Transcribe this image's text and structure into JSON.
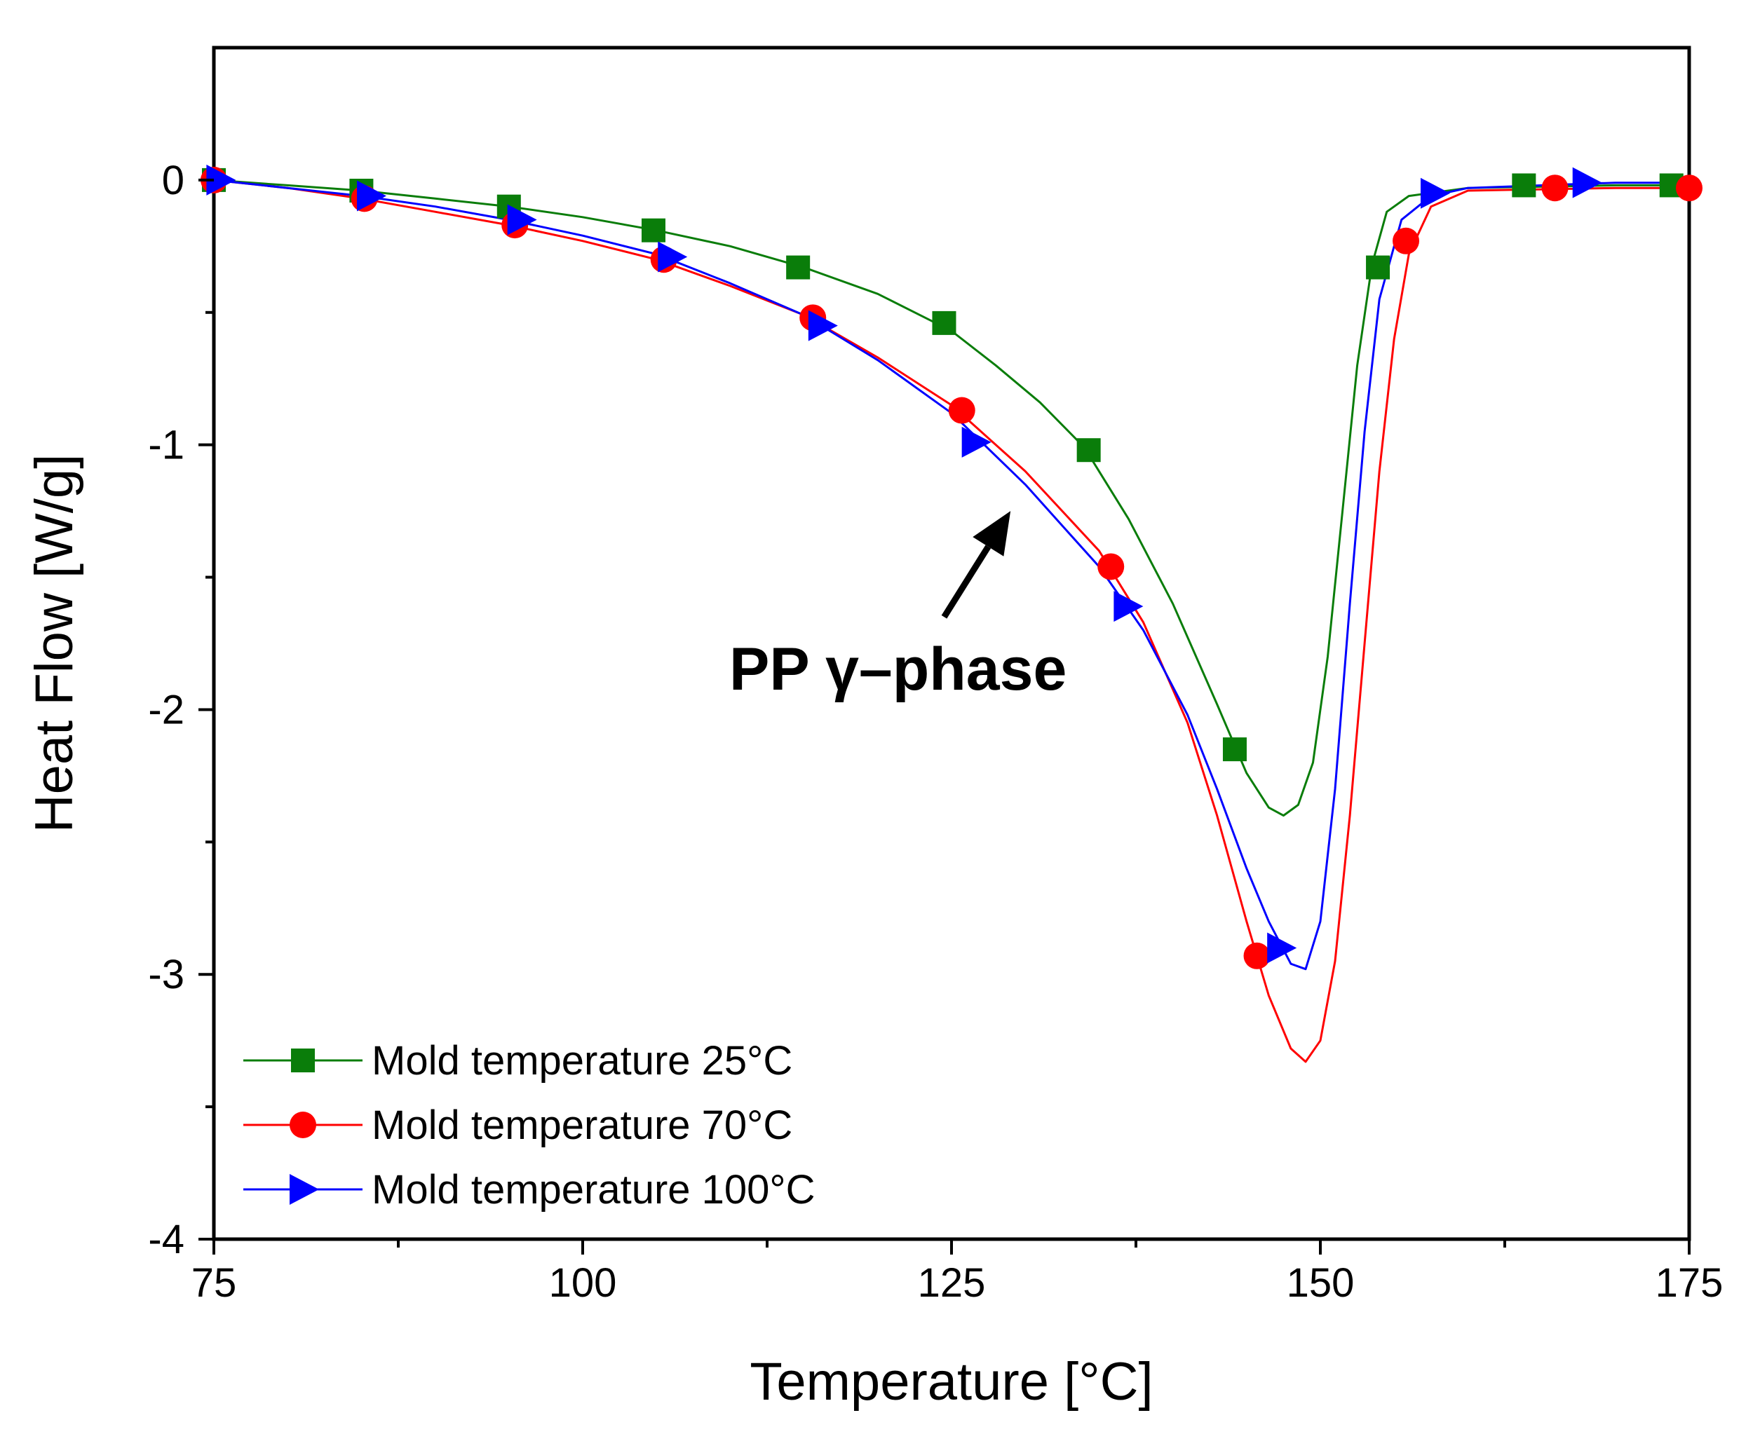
{
  "chart_data": {
    "type": "line",
    "title": "",
    "xlabel": "Temperature [°C]",
    "ylabel": "Heat Flow [W/g]",
    "xlim": [
      75,
      175
    ],
    "ylim": [
      -4,
      0.5
    ],
    "x_ticks": [
      75,
      100,
      125,
      150,
      175
    ],
    "x_tick_labels": [
      "75",
      "100",
      "125",
      "150",
      "175"
    ],
    "x_minor_ticks": [
      87.5,
      112.5,
      137.5,
      162.5
    ],
    "y_ticks": [
      0,
      -1,
      -2,
      -3,
      -4
    ],
    "y_tick_labels": [
      "0",
      "-1",
      "-2",
      "-3",
      "-4"
    ],
    "y_minor_ticks": [
      -0.5,
      -1.5,
      -2.5,
      -3.5
    ],
    "grid": false,
    "legend_position": "bottom-left",
    "annotation": {
      "text": "PP γ–phase",
      "arrow_from": [
        124.5,
        -1.65
      ],
      "arrow_to": [
        129,
        -1.25
      ]
    },
    "series": [
      {
        "name": "Mold temperature 25°C",
        "color": "#0a7d0a",
        "marker": "square",
        "curve": [
          [
            75,
            0
          ],
          [
            80,
            -0.02
          ],
          [
            85,
            -0.04
          ],
          [
            90,
            -0.07
          ],
          [
            95,
            -0.1
          ],
          [
            100,
            -0.14
          ],
          [
            105,
            -0.19
          ],
          [
            110,
            -0.25
          ],
          [
            115,
            -0.33
          ],
          [
            120,
            -0.43
          ],
          [
            125,
            -0.57
          ],
          [
            128,
            -0.7
          ],
          [
            131,
            -0.84
          ],
          [
            134,
            -1.01
          ],
          [
            137,
            -1.28
          ],
          [
            140,
            -1.6
          ],
          [
            143,
            -1.98
          ],
          [
            145,
            -2.24
          ],
          [
            146.5,
            -2.37
          ],
          [
            147.5,
            -2.4
          ],
          [
            148.5,
            -2.36
          ],
          [
            149.5,
            -2.2
          ],
          [
            150.5,
            -1.8
          ],
          [
            151.5,
            -1.25
          ],
          [
            152.5,
            -0.7
          ],
          [
            153.5,
            -0.32
          ],
          [
            154.5,
            -0.12
          ],
          [
            156,
            -0.06
          ],
          [
            160,
            -0.03
          ],
          [
            170,
            -0.02
          ],
          [
            175,
            -0.02
          ]
        ],
        "markers": [
          [
            75,
            0
          ],
          [
            85,
            -0.04
          ],
          [
            95,
            -0.1
          ],
          [
            104.8,
            -0.19
          ],
          [
            114.6,
            -0.33
          ],
          [
            124.5,
            -0.54
          ],
          [
            134.3,
            -1.02
          ],
          [
            144.2,
            -2.15
          ],
          [
            153.9,
            -0.33
          ],
          [
            163.8,
            -0.02
          ],
          [
            173.8,
            -0.02
          ]
        ]
      },
      {
        "name": "Mold temperature 70°C",
        "color": "#ff0000",
        "marker": "circle",
        "curve": [
          [
            75,
            0
          ],
          [
            80,
            -0.03
          ],
          [
            85,
            -0.07
          ],
          [
            90,
            -0.12
          ],
          [
            95,
            -0.17
          ],
          [
            100,
            -0.23
          ],
          [
            105,
            -0.3
          ],
          [
            110,
            -0.4
          ],
          [
            115,
            -0.51
          ],
          [
            120,
            -0.67
          ],
          [
            125,
            -0.85
          ],
          [
            130,
            -1.1
          ],
          [
            135,
            -1.4
          ],
          [
            138,
            -1.67
          ],
          [
            141,
            -2.05
          ],
          [
            143,
            -2.4
          ],
          [
            145,
            -2.8
          ],
          [
            146.5,
            -3.08
          ],
          [
            148,
            -3.28
          ],
          [
            149,
            -3.33
          ],
          [
            150,
            -3.25
          ],
          [
            151,
            -2.95
          ],
          [
            152,
            -2.4
          ],
          [
            153,
            -1.75
          ],
          [
            154,
            -1.1
          ],
          [
            155,
            -0.6
          ],
          [
            156,
            -0.28
          ],
          [
            157.5,
            -0.1
          ],
          [
            160,
            -0.04
          ],
          [
            170,
            -0.03
          ],
          [
            175,
            -0.03
          ]
        ],
        "markers": [
          [
            75,
            0
          ],
          [
            85.2,
            -0.07
          ],
          [
            95.4,
            -0.17
          ],
          [
            105.5,
            -0.3
          ],
          [
            115.6,
            -0.52
          ],
          [
            125.7,
            -0.87
          ],
          [
            135.8,
            -1.46
          ],
          [
            145.7,
            -2.93
          ],
          [
            155.8,
            -0.23
          ],
          [
            165.9,
            -0.03
          ],
          [
            175,
            -0.03
          ]
        ]
      },
      {
        "name": "Mold temperature 100°C",
        "color": "#0000ff",
        "marker": "triangle-right",
        "curve": [
          [
            75,
            0
          ],
          [
            80,
            -0.03
          ],
          [
            85,
            -0.06
          ],
          [
            90,
            -0.1
          ],
          [
            95,
            -0.15
          ],
          [
            100,
            -0.21
          ],
          [
            105,
            -0.28
          ],
          [
            110,
            -0.39
          ],
          [
            115,
            -0.51
          ],
          [
            120,
            -0.68
          ],
          [
            125,
            -0.88
          ],
          [
            130,
            -1.15
          ],
          [
            135,
            -1.46
          ],
          [
            138,
            -1.7
          ],
          [
            141,
            -2.02
          ],
          [
            143,
            -2.3
          ],
          [
            145,
            -2.6
          ],
          [
            146.5,
            -2.8
          ],
          [
            148,
            -2.96
          ],
          [
            149,
            -2.98
          ],
          [
            150,
            -2.8
          ],
          [
            151,
            -2.3
          ],
          [
            152,
            -1.6
          ],
          [
            153,
            -0.95
          ],
          [
            154,
            -0.45
          ],
          [
            155.5,
            -0.15
          ],
          [
            157.5,
            -0.06
          ],
          [
            160,
            -0.03
          ],
          [
            170,
            -0.01
          ],
          [
            175,
            -0.01
          ]
        ],
        "markers": [
          [
            75.4,
            0
          ],
          [
            85.6,
            -0.06
          ],
          [
            95.8,
            -0.15
          ],
          [
            106,
            -0.29
          ],
          [
            116.2,
            -0.55
          ],
          [
            126.6,
            -0.99
          ],
          [
            136.9,
            -1.61
          ],
          [
            147.3,
            -2.9
          ],
          [
            157.7,
            -0.05
          ],
          [
            168,
            -0.01
          ]
        ]
      }
    ]
  }
}
